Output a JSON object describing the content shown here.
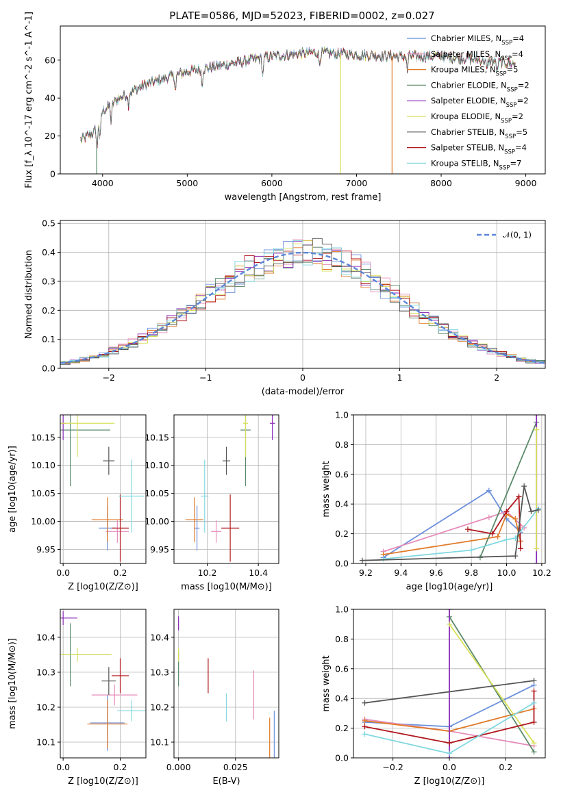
{
  "figure": {
    "title": "PLATE=0586, MJD=52023, FIBERID=0002, z=0.027"
  },
  "series": [
    {
      "name": "Chabrier MILES, N_SSP=4",
      "color": "#6b8fdc"
    },
    {
      "name": "Salpeter MILES, N_SSP=4",
      "color": "#e58cba"
    },
    {
      "name": "Kroupa MILES, N_SSP=5",
      "color": "#e07b2a"
    },
    {
      "name": "Chabrier ELODIE, N_SSP=2",
      "color": "#5a8a6a"
    },
    {
      "name": "Salpeter ELODIE, N_SSP=2",
      "color": "#8a2ab8"
    },
    {
      "name": "Kroupa ELODIE, N_SSP=2",
      "color": "#d7e05a"
    },
    {
      "name": "Chabrier STELIB, N_SSP=5",
      "color": "#555555"
    },
    {
      "name": "Salpeter STELIB, N_SSP=4",
      "color": "#b0181e"
    },
    {
      "name": "Kroupa STELIB, N_SSP=7",
      "color": "#80d8e0"
    }
  ],
  "chart_data": [
    {
      "id": "spectrum",
      "type": "line",
      "xlabel": "wavelength [Angstrom, rest frame]",
      "ylabel": "Flux [f_λ 10^-17 erg cm^-2 s^-1 A^-1]",
      "xlim": [
        3500,
        9230
      ],
      "ylim": [
        0,
        78
      ],
      "xticks": [
        4000,
        5000,
        6000,
        7000,
        8000,
        9000
      ],
      "yticks": [
        0,
        20,
        40,
        60
      ],
      "continuum": [
        [
          3750,
          18
        ],
        [
          3900,
          22
        ],
        [
          4000,
          33
        ],
        [
          4200,
          40
        ],
        [
          4500,
          47
        ],
        [
          5000,
          54
        ],
        [
          5500,
          58
        ],
        [
          6000,
          62
        ],
        [
          6500,
          64
        ],
        [
          7000,
          63
        ],
        [
          7500,
          62
        ],
        [
          8000,
          62
        ],
        [
          8500,
          60
        ],
        [
          8880,
          58
        ]
      ],
      "absorption": [
        [
          3935,
          14
        ],
        [
          3970,
          12
        ],
        [
          4102,
          10
        ],
        [
          4305,
          6
        ],
        [
          4862,
          8
        ],
        [
          5175,
          9
        ],
        [
          5892,
          10
        ],
        [
          6563,
          6
        ],
        [
          7600,
          8
        ],
        [
          8540,
          6
        ],
        [
          8662,
          6
        ]
      ],
      "dropouts": [
        {
          "x": 3930,
          "series": 3
        },
        {
          "x": 6810,
          "series": 5
        },
        {
          "x": 7420,
          "series": 2
        }
      ]
    },
    {
      "id": "residuals",
      "type": "step",
      "xlabel": "(data-model)/error",
      "ylabel": "Normed distribution",
      "xlim": [
        -2.5,
        2.5
      ],
      "ylim": [
        0,
        0.51
      ],
      "xticks": [
        -2,
        -1,
        0,
        1,
        2
      ],
      "yticks": [
        0.0,
        0.1,
        0.2,
        0.3,
        0.4,
        0.5
      ],
      "bin_width": 0.1,
      "reference": "𝒩(0, 1)"
    },
    {
      "id": "age_vs_Z",
      "type": "errorbar",
      "xlabel": "Z [log10(Z/Z⊙)]",
      "ylabel": "age  [log10(age/yr)]",
      "xlim": [
        -0.01,
        0.29
      ],
      "ylim": [
        9.925,
        10.19
      ],
      "xticks": [
        0.0,
        0.2
      ],
      "yticks": [
        9.95,
        10.0,
        10.05,
        10.1,
        10.15
      ],
      "points": [
        {
          "s": 0,
          "x": 0.155,
          "y": 9.988,
          "xerr": 0.03,
          "yerr": 0.04
        },
        {
          "s": 1,
          "x": 0.19,
          "y": 9.982,
          "xerr": 0.04,
          "yerr": 0.02
        },
        {
          "s": 2,
          "x": 0.155,
          "y": 10.003,
          "xerr": 0.055,
          "yerr": 0.04
        },
        {
          "s": 3,
          "x": 0.025,
          "y": 10.163,
          "xerr": 0.14,
          "yerr": 0.1
        },
        {
          "s": 4,
          "x": 0.0,
          "y": 10.175,
          "xerr": 0.01,
          "yerr": 0.03
        },
        {
          "s": 5,
          "x": 0.05,
          "y": 10.175,
          "xerr": 0.13,
          "yerr": 0.06
        },
        {
          "s": 6,
          "x": 0.16,
          "y": 10.108,
          "xerr": 0.02,
          "yerr": 0.025
        },
        {
          "s": 7,
          "x": 0.2,
          "y": 9.988,
          "xerr": 0.03,
          "yerr": 0.06
        },
        {
          "s": 8,
          "x": 0.24,
          "y": 10.045,
          "xerr": 0.045,
          "yerr": 0.065
        }
      ]
    },
    {
      "id": "age_vs_mass",
      "type": "errorbar",
      "xlabel": "mass [log10(M/M⊙)]",
      "ylabel": "",
      "xlim": [
        10.07,
        10.48
      ],
      "ylim": [
        9.925,
        10.19
      ],
      "xticks": [
        10.2,
        10.4
      ],
      "yticks": [
        9.95,
        10.0,
        10.05,
        10.1,
        10.15
      ],
      "points": [
        {
          "s": 0,
          "x": 10.16,
          "y": 9.988,
          "xerr": 0.01,
          "yerr": 0.04
        },
        {
          "s": 1,
          "x": 10.235,
          "y": 9.982,
          "xerr": 0.02,
          "yerr": 0.02
        },
        {
          "s": 2,
          "x": 10.15,
          "y": 10.003,
          "xerr": 0.035,
          "yerr": 0.04
        },
        {
          "s": 3,
          "x": 10.35,
          "y": 10.163,
          "xerr": 0.02,
          "yerr": 0.1
        },
        {
          "s": 4,
          "x": 10.455,
          "y": 10.175,
          "xerr": 0.01,
          "yerr": 0.03
        },
        {
          "s": 5,
          "x": 10.35,
          "y": 10.175,
          "xerr": 0.01,
          "yerr": 0.06
        },
        {
          "s": 6,
          "x": 10.275,
          "y": 10.108,
          "xerr": 0.015,
          "yerr": 0.025
        },
        {
          "s": 7,
          "x": 10.29,
          "y": 9.988,
          "xerr": 0.035,
          "yerr": 0.06
        },
        {
          "s": 8,
          "x": 10.19,
          "y": 10.045,
          "xerr": 0.015,
          "yerr": 0.065
        }
      ]
    },
    {
      "id": "weight_vs_age",
      "type": "line",
      "xlabel": "age  [log10(age/yr)]",
      "ylabel": "mass weight",
      "xlim": [
        9.13,
        10.22
      ],
      "ylim": [
        0,
        1
      ],
      "xticks": [
        9.2,
        9.4,
        9.6,
        9.8,
        10.0,
        10.2
      ],
      "yticks": [
        0.0,
        0.2,
        0.4,
        0.6,
        0.8,
        1.0
      ],
      "lines": [
        {
          "s": 0,
          "pts": [
            [
              9.3,
              0.04
            ],
            [
              9.9,
              0.49
            ],
            [
              10.0,
              0.3
            ],
            [
              10.08,
              0.21
            ]
          ]
        },
        {
          "s": 1,
          "pts": [
            [
              9.3,
              0.08
            ],
            [
              9.9,
              0.31
            ],
            [
              10.0,
              0.35
            ],
            [
              10.1,
              0.24
            ]
          ]
        },
        {
          "s": 2,
          "pts": [
            [
              9.3,
              0.06
            ],
            [
              9.95,
              0.18
            ],
            [
              10.0,
              0.33
            ],
            [
              10.05,
              0.3
            ],
            [
              10.08,
              0.15
            ]
          ]
        },
        {
          "s": 3,
          "pts": [
            [
              9.85,
              0.04
            ],
            [
              10.17,
              0.95
            ]
          ]
        },
        {
          "s": 4,
          "pts": [
            [
              10.17,
              0.0
            ],
            [
              10.17,
              1.0
            ]
          ]
        },
        {
          "s": 5,
          "pts": [
            [
              10.17,
              0.1
            ],
            [
              10.17,
              0.9
            ]
          ]
        },
        {
          "s": 6,
          "pts": [
            [
              9.18,
              0.02
            ],
            [
              10.05,
              0.05
            ],
            [
              10.1,
              0.52
            ],
            [
              10.14,
              0.35
            ],
            [
              10.18,
              0.36
            ]
          ]
        },
        {
          "s": 7,
          "pts": [
            [
              9.78,
              0.23
            ],
            [
              9.92,
              0.2
            ],
            [
              10.0,
              0.35
            ],
            [
              10.07,
              0.45
            ],
            [
              10.08,
              0.1
            ]
          ]
        },
        {
          "s": 8,
          "pts": [
            [
              9.3,
              0.03
            ],
            [
              9.8,
              0.09
            ],
            [
              10.0,
              0.16
            ],
            [
              10.05,
              0.17
            ],
            [
              10.18,
              0.37
            ]
          ]
        }
      ]
    },
    {
      "id": "mass_vs_Z",
      "type": "errorbar",
      "xlabel": "Z [log10(Z/Z⊙)]",
      "ylabel": "mass [log10(M/M⊙)]",
      "xlim": [
        -0.01,
        0.29
      ],
      "ylim": [
        10.055,
        10.48
      ],
      "xticks": [
        0.0,
        0.2
      ],
      "yticks": [
        10.1,
        10.2,
        10.3,
        10.4
      ],
      "points": [
        {
          "s": 0,
          "x": 0.155,
          "y": 10.155,
          "xerr": 0.06,
          "yerr": 0.08
        },
        {
          "s": 1,
          "x": 0.18,
          "y": 10.235,
          "xerr": 0.08,
          "yerr": 0.03
        },
        {
          "s": 2,
          "x": 0.155,
          "y": 10.152,
          "xerr": 0.07,
          "yerr": 0.07
        },
        {
          "s": 3,
          "x": 0.025,
          "y": 10.35,
          "xerr": 0.14,
          "yerr": 0.09
        },
        {
          "s": 4,
          "x": 0.0,
          "y": 10.455,
          "xerr": 0.05,
          "yerr": 0.02
        },
        {
          "s": 5,
          "x": 0.05,
          "y": 10.35,
          "xerr": 0.12,
          "yerr": 0.02
        },
        {
          "s": 6,
          "x": 0.16,
          "y": 10.275,
          "xerr": 0.025,
          "yerr": 0.04
        },
        {
          "s": 7,
          "x": 0.2,
          "y": 10.29,
          "xerr": 0.03,
          "yerr": 0.05
        },
        {
          "s": 8,
          "x": 0.24,
          "y": 10.19,
          "xerr": 0.05,
          "yerr": 0.03
        }
      ]
    },
    {
      "id": "mass_vs_ebv",
      "type": "errorbar",
      "xlabel": "E(B-V)",
      "ylabel": "",
      "xlim": [
        -0.002,
        0.044
      ],
      "ylim": [
        10.055,
        10.48
      ],
      "xticks": [
        0.0,
        0.025
      ],
      "yticks": [
        10.1,
        10.2,
        10.3,
        10.4
      ],
      "points": [
        {
          "s": 0,
          "x": 0.042,
          "y": 10.1,
          "xerr": 0,
          "yerr": 0.09
        },
        {
          "s": 1,
          "x": 0.033,
          "y": 10.235,
          "xerr": 0,
          "yerr": 0.07
        },
        {
          "s": 2,
          "x": 0.04,
          "y": 10.09,
          "xerr": 0,
          "yerr": 0.08
        },
        {
          "s": 3,
          "x": 0.0,
          "y": 10.31,
          "xerr": 0,
          "yerr": 0.05
        },
        {
          "s": 4,
          "x": 0.0,
          "y": 10.44,
          "xerr": 0,
          "yerr": 0.02
        },
        {
          "s": 5,
          "x": 0.0,
          "y": 10.35,
          "xerr": 0,
          "yerr": 0.02
        },
        {
          "s": 7,
          "x": 0.013,
          "y": 10.29,
          "xerr": 0,
          "yerr": 0.05
        },
        {
          "s": 8,
          "x": 0.021,
          "y": 10.2,
          "xerr": 0,
          "yerr": 0.04
        }
      ]
    },
    {
      "id": "weight_vs_Z",
      "type": "line",
      "xlabel": "Z [log10(Z/Z⊙)]",
      "ylabel": "mass weight",
      "xlim": [
        -0.34,
        0.34
      ],
      "ylim": [
        0,
        1
      ],
      "xticks": [
        -0.2,
        0.0,
        0.2
      ],
      "yticks": [
        0.0,
        0.2,
        0.4,
        0.6,
        0.8,
        1.0
      ],
      "lines": [
        {
          "s": 0,
          "pts": [
            [
              -0.3,
              0.24
            ],
            [
              0.0,
              0.21
            ],
            [
              0.3,
              0.49
            ]
          ]
        },
        {
          "s": 1,
          "pts": [
            [
              -0.3,
              0.26
            ],
            [
              0.0,
              0.18
            ],
            [
              0.3,
              0.08
            ]
          ]
        },
        {
          "s": 2,
          "pts": [
            [
              -0.3,
              0.25
            ],
            [
              0.0,
              0.18
            ],
            [
              0.3,
              0.33
            ]
          ]
        },
        {
          "s": 3,
          "pts": [
            [
              0.0,
              0.95
            ],
            [
              0.3,
              0.04
            ]
          ]
        },
        {
          "s": 4,
          "pts": [
            [
              0.0,
              0.0
            ],
            [
              0.0,
              1.0
            ]
          ]
        },
        {
          "s": 5,
          "pts": [
            [
              0.0,
              0.9
            ],
            [
              0.3,
              0.1
            ]
          ]
        },
        {
          "s": 6,
          "pts": [
            [
              -0.3,
              0.37
            ],
            [
              0.3,
              0.52
            ]
          ]
        },
        {
          "s": 7,
          "pts": [
            [
              -0.3,
              0.21
            ],
            [
              0.0,
              0.1
            ],
            [
              0.3,
              0.24
            ],
            [
              0.3,
              0.45
            ]
          ]
        },
        {
          "s": 8,
          "pts": [
            [
              -0.3,
              0.16
            ],
            [
              0.0,
              0.03
            ],
            [
              0.3,
              0.37
            ]
          ]
        }
      ]
    }
  ]
}
